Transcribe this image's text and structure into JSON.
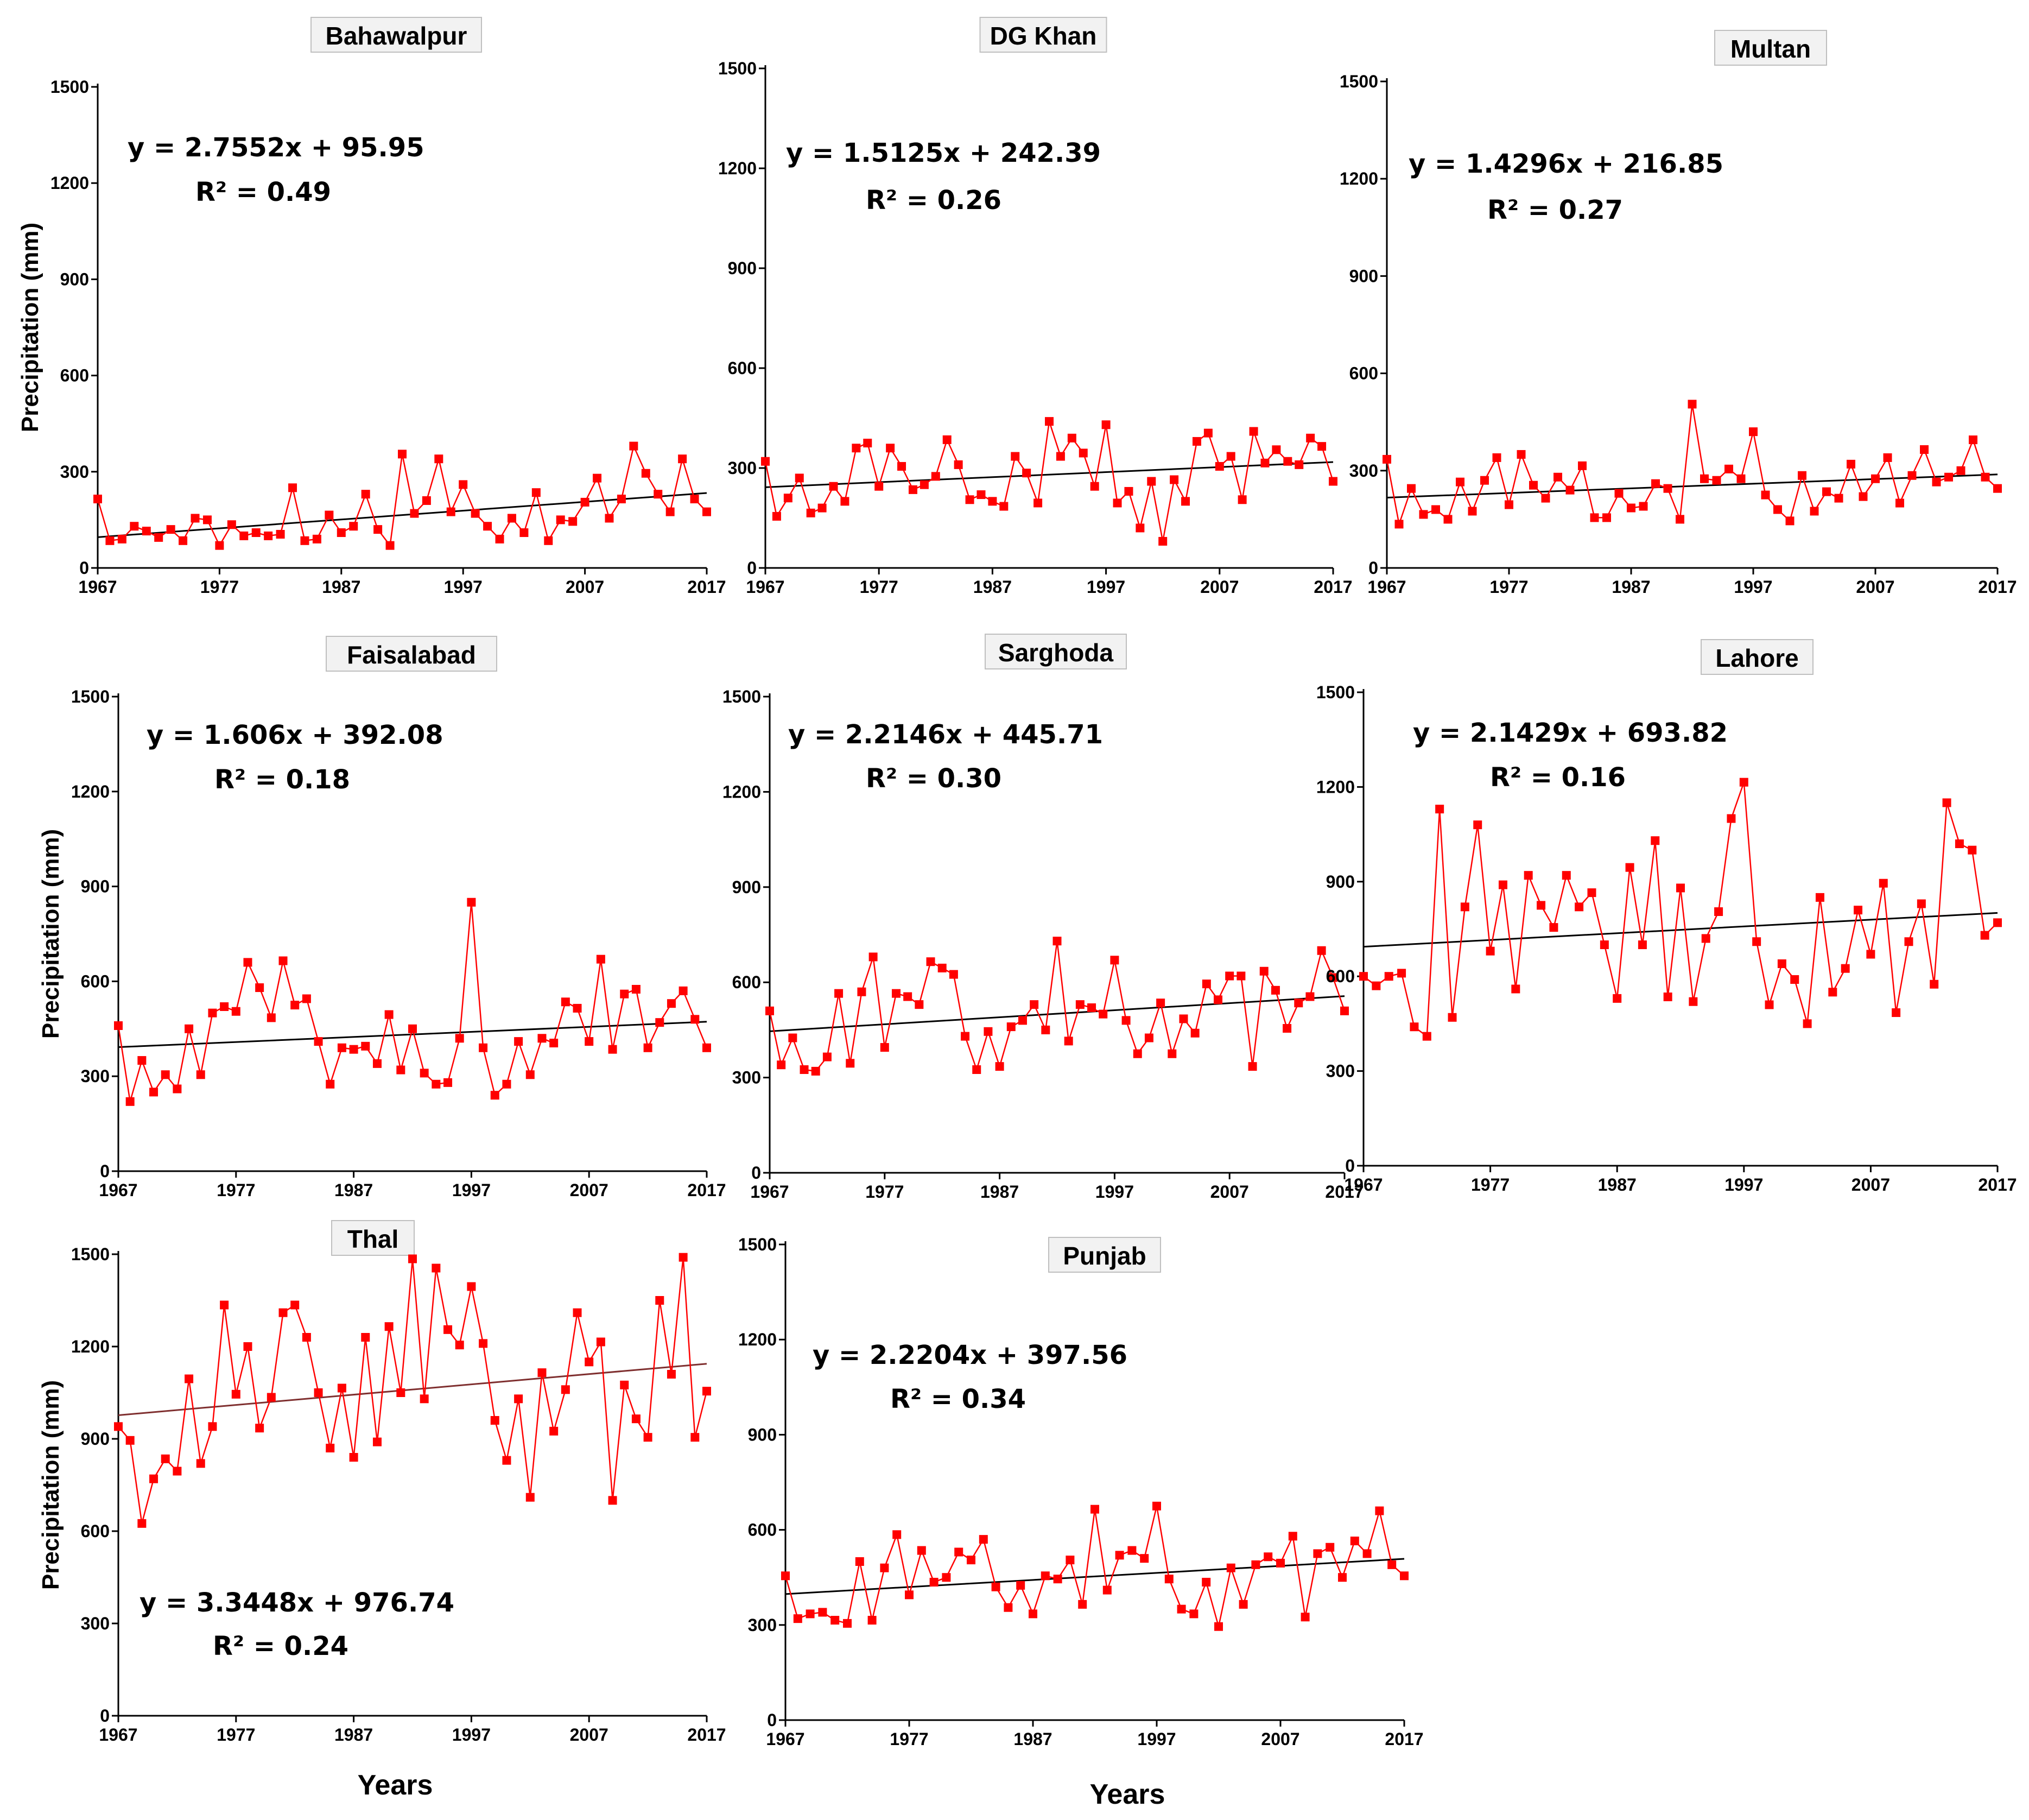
{
  "figure": {
    "x_axis_label": "Years",
    "y_axis_label": "Precipitation (mm)",
    "colors": {
      "series": "#ff0000",
      "trend_bahawalpur": "#000000",
      "trend_thal": "#7f2f2f",
      "axis": "#000000",
      "title_box": "#f2f2f2"
    }
  },
  "chart_data": [
    {
      "type": "line",
      "title": "Bahawalpur",
      "xlabel": "",
      "ylabel": "Precipitation (mm)",
      "xlim": [
        1967,
        2017
      ],
      "ylim": [
        0,
        1500
      ],
      "xticks": [
        "1967",
        "1977",
        "1987",
        "1997",
        "2007",
        "2017"
      ],
      "yticks": [
        "0",
        "300",
        "600",
        "900",
        "1200",
        "1500"
      ],
      "trend": {
        "slope": 2.7552,
        "intercept": 95.95
      },
      "equation": "y = 2.7552x + 95.95",
      "r2": "R² = 0.49",
      "start_year": 1967,
      "values": [
        215,
        85,
        90,
        130,
        115,
        95,
        120,
        85,
        155,
        150,
        70,
        135,
        100,
        110,
        100,
        105,
        250,
        85,
        90,
        165,
        110,
        130,
        230,
        120,
        70,
        355,
        170,
        210,
        340,
        175,
        260,
        170,
        130,
        90,
        155,
        110,
        235,
        85,
        150,
        145,
        205,
        280,
        155,
        215,
        380,
        295,
        230,
        175,
        340,
        215,
        175
      ]
    },
    {
      "type": "line",
      "title": "DG Khan",
      "xlabel": "",
      "ylabel": "",
      "xlim": [
        1967,
        2017
      ],
      "ylim": [
        0,
        1500
      ],
      "xticks": [
        "1967",
        "1977",
        "1987",
        "1997",
        "2007",
        "2017"
      ],
      "yticks": [
        "0",
        "300",
        "600",
        "900",
        "1200",
        "1500"
      ],
      "trend": {
        "slope": 1.5125,
        "intercept": 242.39
      },
      "equation": "y = 1.5125x + 242.39",
      "r2": "R² = 0.26",
      "start_year": 1967,
      "values": [
        320,
        155,
        210,
        270,
        165,
        180,
        245,
        200,
        360,
        375,
        245,
        360,
        305,
        235,
        250,
        275,
        385,
        310,
        205,
        220,
        200,
        185,
        335,
        285,
        195,
        440,
        335,
        390,
        345,
        245,
        430,
        195,
        230,
        120,
        260,
        80,
        265,
        200,
        380,
        405,
        305,
        335,
        205,
        410,
        315,
        355,
        320,
        310,
        390,
        365,
        260
      ]
    },
    {
      "type": "line",
      "title": "Multan",
      "xlabel": "",
      "ylabel": "",
      "xlim": [
        1967,
        2017
      ],
      "ylim": [
        0,
        1500
      ],
      "xticks": [
        "1967",
        "1977",
        "1987",
        "1997",
        "2007",
        "2017"
      ],
      "yticks": [
        "0",
        "300",
        "600",
        "900",
        "1200",
        "1500"
      ],
      "trend": {
        "slope": 1.4296,
        "intercept": 216.85
      },
      "equation": "y = 1.4296x + 216.85",
      "r2": "R² = 0.27",
      "start_year": 1967,
      "values": [
        335,
        135,
        245,
        165,
        180,
        150,
        265,
        175,
        270,
        340,
        195,
        350,
        255,
        215,
        280,
        240,
        315,
        155,
        155,
        230,
        185,
        190,
        260,
        245,
        150,
        505,
        275,
        270,
        305,
        275,
        420,
        225,
        180,
        145,
        285,
        175,
        235,
        215,
        320,
        220,
        275,
        340,
        200,
        285,
        365,
        265,
        280,
        300,
        395,
        280,
        245
      ]
    },
    {
      "type": "line",
      "title": "Faisalabad",
      "xlabel": "",
      "ylabel": "Precipitation (mm)",
      "xlim": [
        1967,
        2017
      ],
      "ylim": [
        0,
        1500
      ],
      "xticks": [
        "1967",
        "1977",
        "1987",
        "1997",
        "2007",
        "2017"
      ],
      "yticks": [
        "0",
        "300",
        "600",
        "900",
        "1200",
        "1500"
      ],
      "trend": {
        "slope": 1.606,
        "intercept": 392.08
      },
      "equation": "y = 1.606x + 392.08",
      "r2": "R² = 0.18",
      "start_year": 1967,
      "values": [
        460,
        220,
        350,
        250,
        305,
        260,
        450,
        305,
        500,
        520,
        505,
        660,
        580,
        485,
        665,
        525,
        545,
        410,
        275,
        390,
        385,
        395,
        340,
        495,
        320,
        450,
        310,
        275,
        280,
        420,
        850,
        390,
        240,
        275,
        410,
        305,
        420,
        405,
        535,
        515,
        410,
        670,
        385,
        560,
        575,
        390,
        470,
        530,
        570,
        480,
        390
      ]
    },
    {
      "type": "line",
      "title": "Sarghoda",
      "xlabel": "",
      "ylabel": "",
      "xlim": [
        1967,
        2017
      ],
      "ylim": [
        0,
        1500
      ],
      "xticks": [
        "1967",
        "1977",
        "1987",
        "1997",
        "2007",
        "2017"
      ],
      "yticks": [
        "0",
        "300",
        "600",
        "900",
        "1200",
        "1500"
      ],
      "trend": {
        "slope": 2.2146,
        "intercept": 445.71
      },
      "equation": "y = 2.2146x + 445.71",
      "r2": "R² = 0.30",
      "start_year": 1967,
      "values": [
        510,
        340,
        425,
        325,
        320,
        365,
        565,
        345,
        570,
        680,
        395,
        565,
        555,
        530,
        665,
        645,
        625,
        430,
        325,
        445,
        335,
        460,
        480,
        530,
        450,
        730,
        415,
        530,
        520,
        500,
        670,
        480,
        375,
        425,
        535,
        375,
        485,
        440,
        595,
        545,
        620,
        620,
        335,
        635,
        575,
        455,
        535,
        555,
        700,
        615,
        510
      ]
    },
    {
      "type": "line",
      "title": "Lahore",
      "xlabel": "",
      "ylabel": "",
      "xlim": [
        1967,
        2017
      ],
      "ylim": [
        0,
        1500
      ],
      "xticks": [
        "1967",
        "1977",
        "1987",
        "1997",
        "2007",
        "2017"
      ],
      "yticks": [
        "0",
        "300",
        "600",
        "900",
        "1200",
        "1500"
      ],
      "trend": {
        "slope": 2.1429,
        "intercept": 693.82
      },
      "equation": "y = 2.1429x + 693.82",
      "r2": "R² = 0.16",
      "start_year": 1967,
      "values": [
        600,
        570,
        600,
        610,
        440,
        410,
        1130,
        470,
        820,
        1080,
        680,
        890,
        560,
        920,
        825,
        755,
        920,
        820,
        865,
        700,
        530,
        945,
        700,
        1030,
        535,
        880,
        520,
        720,
        805,
        1100,
        1215,
        710,
        510,
        640,
        590,
        450,
        850,
        550,
        625,
        810,
        670,
        895,
        485,
        710,
        830,
        575,
        1150,
        1020,
        1000,
        730,
        770
      ]
    },
    {
      "type": "line",
      "title": "Thal",
      "xlabel": "Years",
      "ylabel": "Precipitation (mm)",
      "xlim": [
        1967,
        2017
      ],
      "ylim": [
        0,
        1500
      ],
      "xticks": [
        "1967",
        "1977",
        "1987",
        "1997",
        "2007",
        "2017"
      ],
      "yticks": [
        "0",
        "300",
        "600",
        "900",
        "1200",
        "1500"
      ],
      "trend": {
        "slope": 3.3448,
        "intercept": 976.74
      },
      "equation": "y = 3.3448x + 976.74",
      "r2": "R² = 0.24",
      "start_year": 1967,
      "values": [
        940,
        895,
        625,
        770,
        835,
        795,
        1095,
        820,
        940,
        1335,
        1045,
        1200,
        935,
        1035,
        1310,
        1335,
        1230,
        1050,
        870,
        1065,
        840,
        1230,
        890,
        1265,
        1050,
        1485,
        1030,
        1455,
        1255,
        1205,
        1395,
        1210,
        960,
        830,
        1030,
        710,
        1115,
        925,
        1060,
        1310,
        1150,
        1215,
        700,
        1075,
        965,
        905,
        1350,
        1110,
        1490,
        905,
        1055
      ]
    },
    {
      "type": "line",
      "title": "Punjab",
      "xlabel": "Years",
      "ylabel": "",
      "xlim": [
        1967,
        2017
      ],
      "ylim": [
        0,
        1500
      ],
      "xticks": [
        "1967",
        "1977",
        "1987",
        "1997",
        "2007",
        "2017"
      ],
      "yticks": [
        "0",
        "300",
        "600",
        "900",
        "1200",
        "1500"
      ],
      "trend": {
        "slope": 2.2204,
        "intercept": 397.56
      },
      "equation": "y = 2.2204x + 397.56",
      "r2": "R² = 0.34",
      "start_year": 1967,
      "values": [
        455,
        320,
        335,
        340,
        315,
        305,
        500,
        315,
        480,
        585,
        395,
        535,
        435,
        450,
        530,
        505,
        570,
        420,
        355,
        425,
        335,
        455,
        445,
        505,
        365,
        665,
        410,
        520,
        535,
        510,
        675,
        445,
        350,
        335,
        435,
        295,
        480,
        365,
        490,
        515,
        495,
        580,
        325,
        525,
        545,
        450,
        565,
        525,
        660,
        490,
        455
      ]
    }
  ]
}
